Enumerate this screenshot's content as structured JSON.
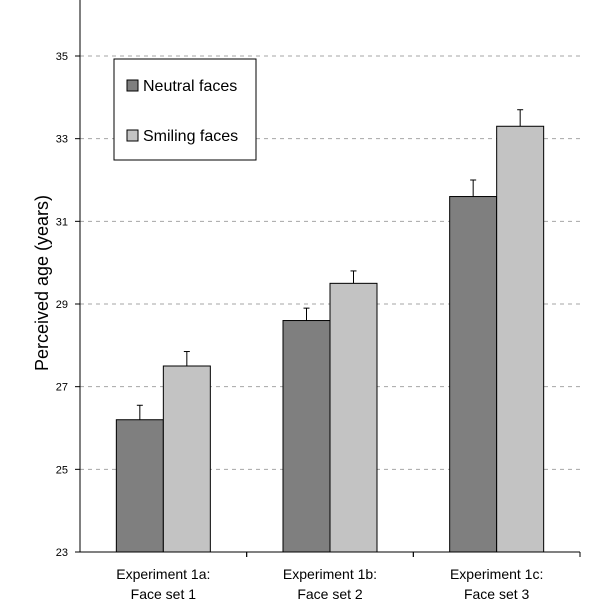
{
  "chart_data": {
    "type": "bar",
    "title": "",
    "xlabel": "",
    "ylabel": "Perceived age (years)",
    "ylim": [
      23,
      36
    ],
    "yticks": [
      23,
      25,
      27,
      29,
      31,
      33,
      35
    ],
    "grid": "horizontal dashed",
    "legend_position": "top-left",
    "categories": [
      [
        "Experiment 1a:",
        "Face set 1"
      ],
      [
        "Experiment 1b:",
        "Face set 2"
      ],
      [
        "Experiment 1c:",
        "Face set 3"
      ]
    ],
    "series": [
      {
        "name": "Neutral faces",
        "color": "#7f7f7f",
        "values": [
          26.2,
          28.6,
          31.6
        ],
        "errors": [
          0.35,
          0.3,
          0.4
        ]
      },
      {
        "name": "Smiling faces",
        "color": "#c3c3c3",
        "values": [
          27.5,
          29.5,
          33.3
        ],
        "errors": [
          0.35,
          0.3,
          0.4
        ]
      }
    ]
  }
}
